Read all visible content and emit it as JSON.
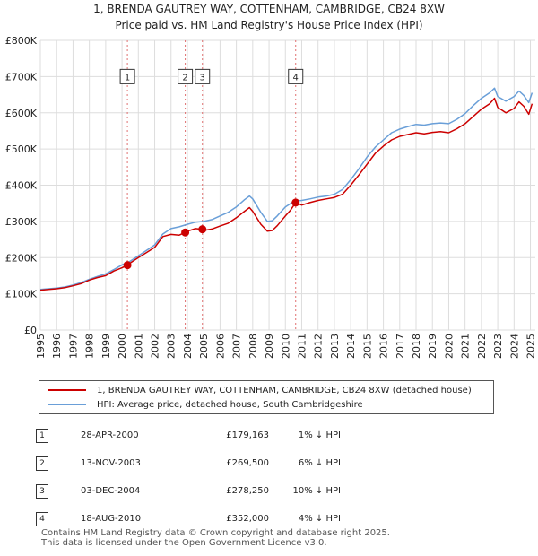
{
  "header": {
    "title": "1, BRENDA GAUTREY WAY, COTTENHAM, CAMBRIDGE, CB24 8XW",
    "subtitle": "Price paid vs. HM Land Registry's House Price Index (HPI)"
  },
  "chart_data": {
    "type": "line",
    "title": "1, BRENDA GAUTREY WAY, COTTENHAM, CAMBRIDGE, CB24 8XW",
    "subtitle": "Price paid vs. HM Land Registry's House Price Index (HPI)",
    "xlabel": "",
    "ylabel": "",
    "xlim": [
      1995,
      2025.3
    ],
    "ylim": [
      0,
      800000
    ],
    "grid": true,
    "x_ticks": [
      "1995",
      "1996",
      "1997",
      "1998",
      "1999",
      "2000",
      "2001",
      "2002",
      "2003",
      "2004",
      "2005",
      "2006",
      "2007",
      "2008",
      "2009",
      "2010",
      "2011",
      "2012",
      "2013",
      "2014",
      "2015",
      "2016",
      "2017",
      "2018",
      "2019",
      "2020",
      "2021",
      "2022",
      "2023",
      "2024",
      "2025"
    ],
    "y_ticks": [
      {
        "value": 0,
        "label": "£0"
      },
      {
        "value": 100000,
        "label": "£100K"
      },
      {
        "value": 200000,
        "label": "£200K"
      },
      {
        "value": 300000,
        "label": "£300K"
      },
      {
        "value": 400000,
        "label": "£400K"
      },
      {
        "value": 500000,
        "label": "£500K"
      },
      {
        "value": 600000,
        "label": "£600K"
      },
      {
        "value": 700000,
        "label": "£700K"
      },
      {
        "value": 800000,
        "label": "£800K"
      }
    ],
    "series": [
      {
        "name": "1, BRENDA GAUTREY WAY, COTTENHAM, CAMBRIDGE, CB24 8XW (detached house)",
        "color": "#cc0000",
        "x": [
          1995.0,
          1995.5,
          1996.0,
          1996.5,
          1997.0,
          1997.5,
          1998.0,
          1998.5,
          1999.0,
          1999.5,
          2000.0,
          2000.33,
          2000.5,
          2001.0,
          2001.5,
          2002.0,
          2002.5,
          2003.0,
          2003.5,
          2003.87,
          2004.0,
          2004.5,
          2004.92,
          2005.0,
          2005.5,
          2006.0,
          2006.5,
          2007.0,
          2007.5,
          2007.8,
          2008.0,
          2008.5,
          2008.9,
          2009.2,
          2009.5,
          2010.0,
          2010.3,
          2010.63,
          2011.0,
          2011.5,
          2012.0,
          2012.5,
          2013.0,
          2013.5,
          2014.0,
          2014.5,
          2015.0,
          2015.5,
          2016.0,
          2016.5,
          2017.0,
          2017.5,
          2018.0,
          2018.5,
          2019.0,
          2019.5,
          2020.0,
          2020.5,
          2021.0,
          2021.5,
          2022.0,
          2022.5,
          2022.8,
          2023.0,
          2023.5,
          2024.0,
          2024.3,
          2024.6,
          2024.9,
          2025.1
        ],
        "y": [
          110000,
          112000,
          114000,
          117000,
          122000,
          128000,
          138000,
          145000,
          150000,
          163000,
          172000,
          179163,
          185000,
          200000,
          214000,
          228000,
          258000,
          264000,
          262000,
          269500,
          273000,
          280000,
          278250,
          275000,
          279000,
          287000,
          295000,
          310000,
          328000,
          338000,
          328000,
          292000,
          273000,
          275000,
          288000,
          315000,
          330000,
          352000,
          345000,
          352000,
          358000,
          362000,
          366000,
          375000,
          400000,
          428000,
          458000,
          488000,
          508000,
          525000,
          535000,
          540000,
          545000,
          542000,
          546000,
          548000,
          545000,
          556000,
          570000,
          590000,
          610000,
          625000,
          640000,
          615000,
          600000,
          612000,
          630000,
          618000,
          596000,
          625000
        ]
      },
      {
        "name": "HPI: Average price, detached house, South Cambridgeshire",
        "color": "#6a9fd8",
        "x": [
          1995.0,
          1995.5,
          1996.0,
          1996.5,
          1997.0,
          1997.5,
          1998.0,
          1998.5,
          1999.0,
          1999.5,
          2000.0,
          2000.5,
          2001.0,
          2001.5,
          2002.0,
          2002.5,
          2003.0,
          2003.5,
          2004.0,
          2004.5,
          2005.0,
          2005.5,
          2006.0,
          2006.5,
          2007.0,
          2007.5,
          2007.8,
          2008.0,
          2008.5,
          2008.9,
          2009.2,
          2009.5,
          2010.0,
          2010.5,
          2011.0,
          2011.5,
          2012.0,
          2012.5,
          2013.0,
          2013.5,
          2014.0,
          2014.5,
          2015.0,
          2015.5,
          2016.0,
          2016.5,
          2017.0,
          2017.5,
          2018.0,
          2018.5,
          2019.0,
          2019.5,
          2020.0,
          2020.5,
          2021.0,
          2021.5,
          2022.0,
          2022.5,
          2022.8,
          2023.0,
          2023.5,
          2024.0,
          2024.3,
          2024.6,
          2024.9,
          2025.1
        ],
        "y": [
          112000,
          114000,
          116000,
          119000,
          124000,
          131000,
          140000,
          148000,
          155000,
          167000,
          180000,
          190000,
          205000,
          220000,
          235000,
          265000,
          280000,
          285000,
          292000,
          298000,
          300000,
          305000,
          315000,
          325000,
          340000,
          360000,
          370000,
          362000,
          325000,
          300000,
          302000,
          315000,
          340000,
          355000,
          358000,
          362000,
          367000,
          370000,
          375000,
          388000,
          415000,
          445000,
          478000,
          505000,
          525000,
          545000,
          555000,
          562000,
          568000,
          566000,
          570000,
          572000,
          570000,
          582000,
          598000,
          620000,
          640000,
          655000,
          668000,
          645000,
          632000,
          645000,
          660000,
          648000,
          628000,
          655000
        ]
      }
    ],
    "markers": [
      {
        "label": "1",
        "x": 2000.33,
        "y": 179163,
        "label_y": 700000
      },
      {
        "label": "2",
        "x": 2003.87,
        "y": 269500,
        "label_y": 700000
      },
      {
        "label": "3",
        "x": 2004.92,
        "y": 278250,
        "label_y": 700000
      },
      {
        "label": "4",
        "x": 2010.63,
        "y": 352000,
        "label_y": 700000
      }
    ],
    "legend_position": "bottom"
  },
  "legend": {
    "items": [
      {
        "label": "1, BRENDA GAUTREY WAY, COTTENHAM, CAMBRIDGE, CB24 8XW (detached house)",
        "color": "#cc0000"
      },
      {
        "label": "HPI: Average price, detached house, South Cambridgeshire",
        "color": "#6a9fd8"
      }
    ]
  },
  "sales": [
    {
      "index": "1",
      "date": "28-APR-2000",
      "price": "£179,163",
      "hpi": "1% ↓ HPI"
    },
    {
      "index": "2",
      "date": "13-NOV-2003",
      "price": "£269,500",
      "hpi": "6% ↓ HPI"
    },
    {
      "index": "3",
      "date": "03-DEC-2004",
      "price": "£278,250",
      "hpi": "10% ↓ HPI"
    },
    {
      "index": "4",
      "date": "18-AUG-2010",
      "price": "£352,000",
      "hpi": "4% ↓ HPI"
    }
  ],
  "footer": {
    "line1": "Contains HM Land Registry data © Crown copyright and database right 2025.",
    "line2": "This data is licensed under the Open Government Licence v3.0."
  }
}
